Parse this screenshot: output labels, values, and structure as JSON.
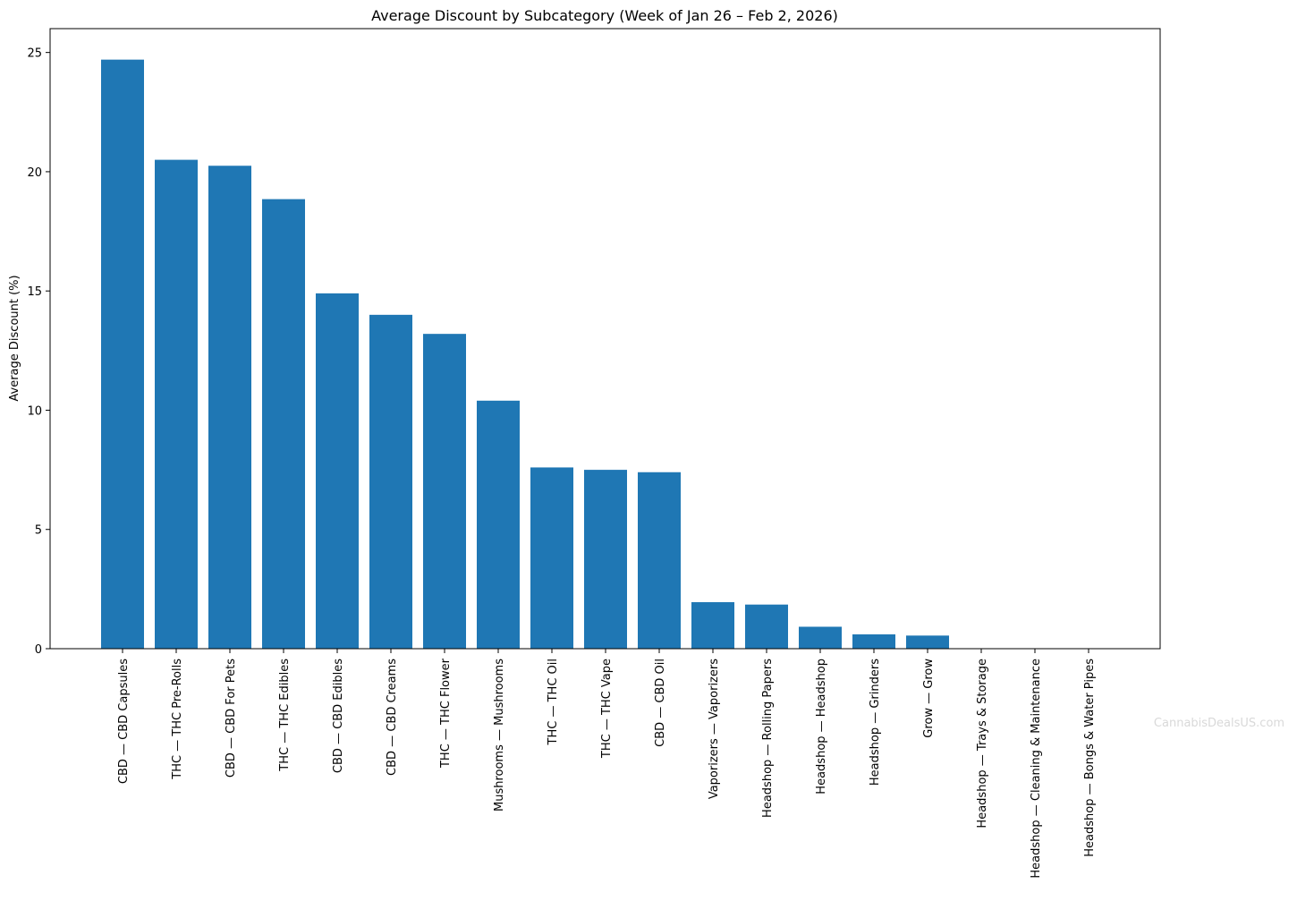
{
  "chart_data": {
    "type": "bar",
    "title": "Average Discount by Subcategory (Week of Jan 26 – Feb 2, 2026)",
    "xlabel": "",
    "ylabel": "Average Discount (%)",
    "ylim": [
      0,
      26
    ],
    "yticks": [
      0,
      5,
      10,
      15,
      20,
      25
    ],
    "ytick_labels": [
      "0",
      "5",
      "10",
      "15",
      "20",
      "25"
    ],
    "grid": false,
    "bar_color": "#1f77b4",
    "categories": [
      "CBD — CBD Capsules",
      "THC — THC Pre-Rolls",
      "CBD — CBD For Pets",
      "THC — THC Edibles",
      "CBD — CBD Edibles",
      "CBD — CBD Creams",
      "THC — THC Flower",
      "Mushrooms — Mushrooms",
      "THC — THC Oil",
      "THC — THC Vape",
      "CBD — CBD Oil",
      "Vaporizers — Vaporizers",
      "Headshop — Rolling Papers",
      "Headshop — Headshop",
      "Headshop — Grinders",
      "Grow — Grow",
      "Headshop — Trays & Storage",
      "Headshop — Cleaning & Maintenance",
      "Headshop — Bongs & Water Pipes"
    ],
    "values": [
      24.7,
      20.5,
      20.25,
      18.85,
      14.9,
      14.0,
      13.2,
      10.4,
      7.6,
      7.5,
      7.4,
      1.95,
      1.85,
      0.92,
      0.6,
      0.55,
      0,
      0,
      0
    ]
  },
  "watermark": {
    "text": "CannabisDealsUS.com"
  }
}
